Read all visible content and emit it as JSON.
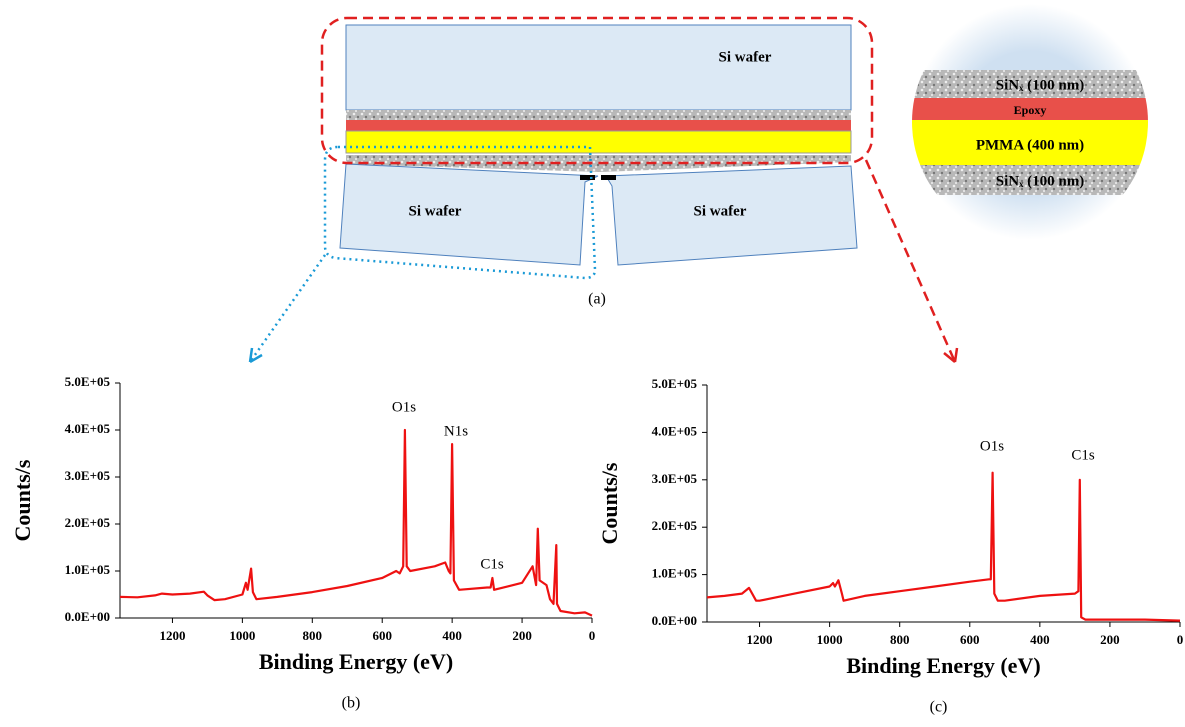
{
  "diagram": {
    "labels": [
      "Si wafer",
      "Si wafer",
      "Si wafer"
    ],
    "inset": [
      "SiNₓ (100 nm)",
      "Epoxy",
      "PMMA (400 nm)",
      "SiNₓ (100 nm)"
    ],
    "caption": "(a)"
  },
  "chart_data": [
    {
      "type": "line",
      "caption": "(b)",
      "xlabel": "Binding Energy (eV)",
      "ylabel": "Counts/s",
      "annotations": [
        "O1s",
        "N1s",
        "C1s"
      ],
      "color": "#ee1111",
      "xlim": [
        1350,
        0
      ],
      "xticks": [
        1200,
        1000,
        800,
        600,
        400,
        200,
        0
      ],
      "ylim": [
        0,
        500000
      ],
      "yticks": [
        {
          "value": 0,
          "label": "0.0E+00"
        },
        {
          "value": 100000,
          "label": "1.0E+05"
        },
        {
          "value": 200000,
          "label": "2.0E+05"
        },
        {
          "value": 300000,
          "label": "3.0E+05"
        },
        {
          "value": 400000,
          "label": "4.0E+05"
        },
        {
          "value": 500000,
          "label": "5.0E+05"
        }
      ],
      "x": [
        1350,
        1300,
        1250,
        1230,
        1200,
        1150,
        1110,
        1100,
        1080,
        1050,
        1000,
        990,
        985,
        975,
        970,
        960,
        900,
        800,
        700,
        600,
        560,
        550,
        540,
        535,
        530,
        520,
        450,
        420,
        410,
        405,
        400,
        395,
        380,
        300,
        290,
        285,
        280,
        200,
        170,
        160,
        155,
        150,
        130,
        120,
        110,
        102,
        100,
        90,
        50,
        20,
        0
      ],
      "values": [
        45000,
        44000,
        48000,
        52000,
        50000,
        52000,
        56000,
        48000,
        38000,
        40000,
        50000,
        75000,
        60000,
        105000,
        55000,
        40000,
        45000,
        55000,
        68000,
        85000,
        100000,
        95000,
        110000,
        400000,
        110000,
        100000,
        110000,
        118000,
        100000,
        95000,
        370000,
        80000,
        60000,
        65000,
        65000,
        85000,
        60000,
        75000,
        110000,
        70000,
        190000,
        80000,
        70000,
        40000,
        30000,
        155000,
        30000,
        15000,
        10000,
        12000,
        5000
      ]
    },
    {
      "type": "line",
      "caption": "(c)",
      "xlabel": "Binding Energy (eV)",
      "ylabel": "Counts/s",
      "annotations": [
        "O1s",
        "C1s"
      ],
      "color": "#ee1111",
      "xlim": [
        1350,
        0
      ],
      "xticks": [
        1200,
        1000,
        800,
        600,
        400,
        200,
        0
      ],
      "ylim": [
        0,
        500000
      ],
      "yticks": [
        {
          "value": 0,
          "label": "0.0E+00"
        },
        {
          "value": 100000,
          "label": "1.0E+05"
        },
        {
          "value": 200000,
          "label": "2.0E+05"
        },
        {
          "value": 300000,
          "label": "3.0E+05"
        },
        {
          "value": 400000,
          "label": "4.0E+05"
        },
        {
          "value": 500000,
          "label": "5.0E+05"
        }
      ],
      "x": [
        1350,
        1300,
        1250,
        1230,
        1210,
        1200,
        1100,
        1000,
        990,
        985,
        975,
        965,
        960,
        900,
        800,
        700,
        600,
        545,
        540,
        535,
        530,
        520,
        500,
        400,
        300,
        290,
        286,
        282,
        270,
        200,
        100,
        0
      ],
      "values": [
        52000,
        55000,
        60000,
        72000,
        45000,
        45000,
        60000,
        75000,
        82000,
        75000,
        88000,
        60000,
        45000,
        55000,
        65000,
        75000,
        85000,
        90000,
        90000,
        315000,
        60000,
        45000,
        45000,
        55000,
        60000,
        65000,
        300000,
        10000,
        5000,
        5000,
        5000,
        3000
      ]
    }
  ]
}
